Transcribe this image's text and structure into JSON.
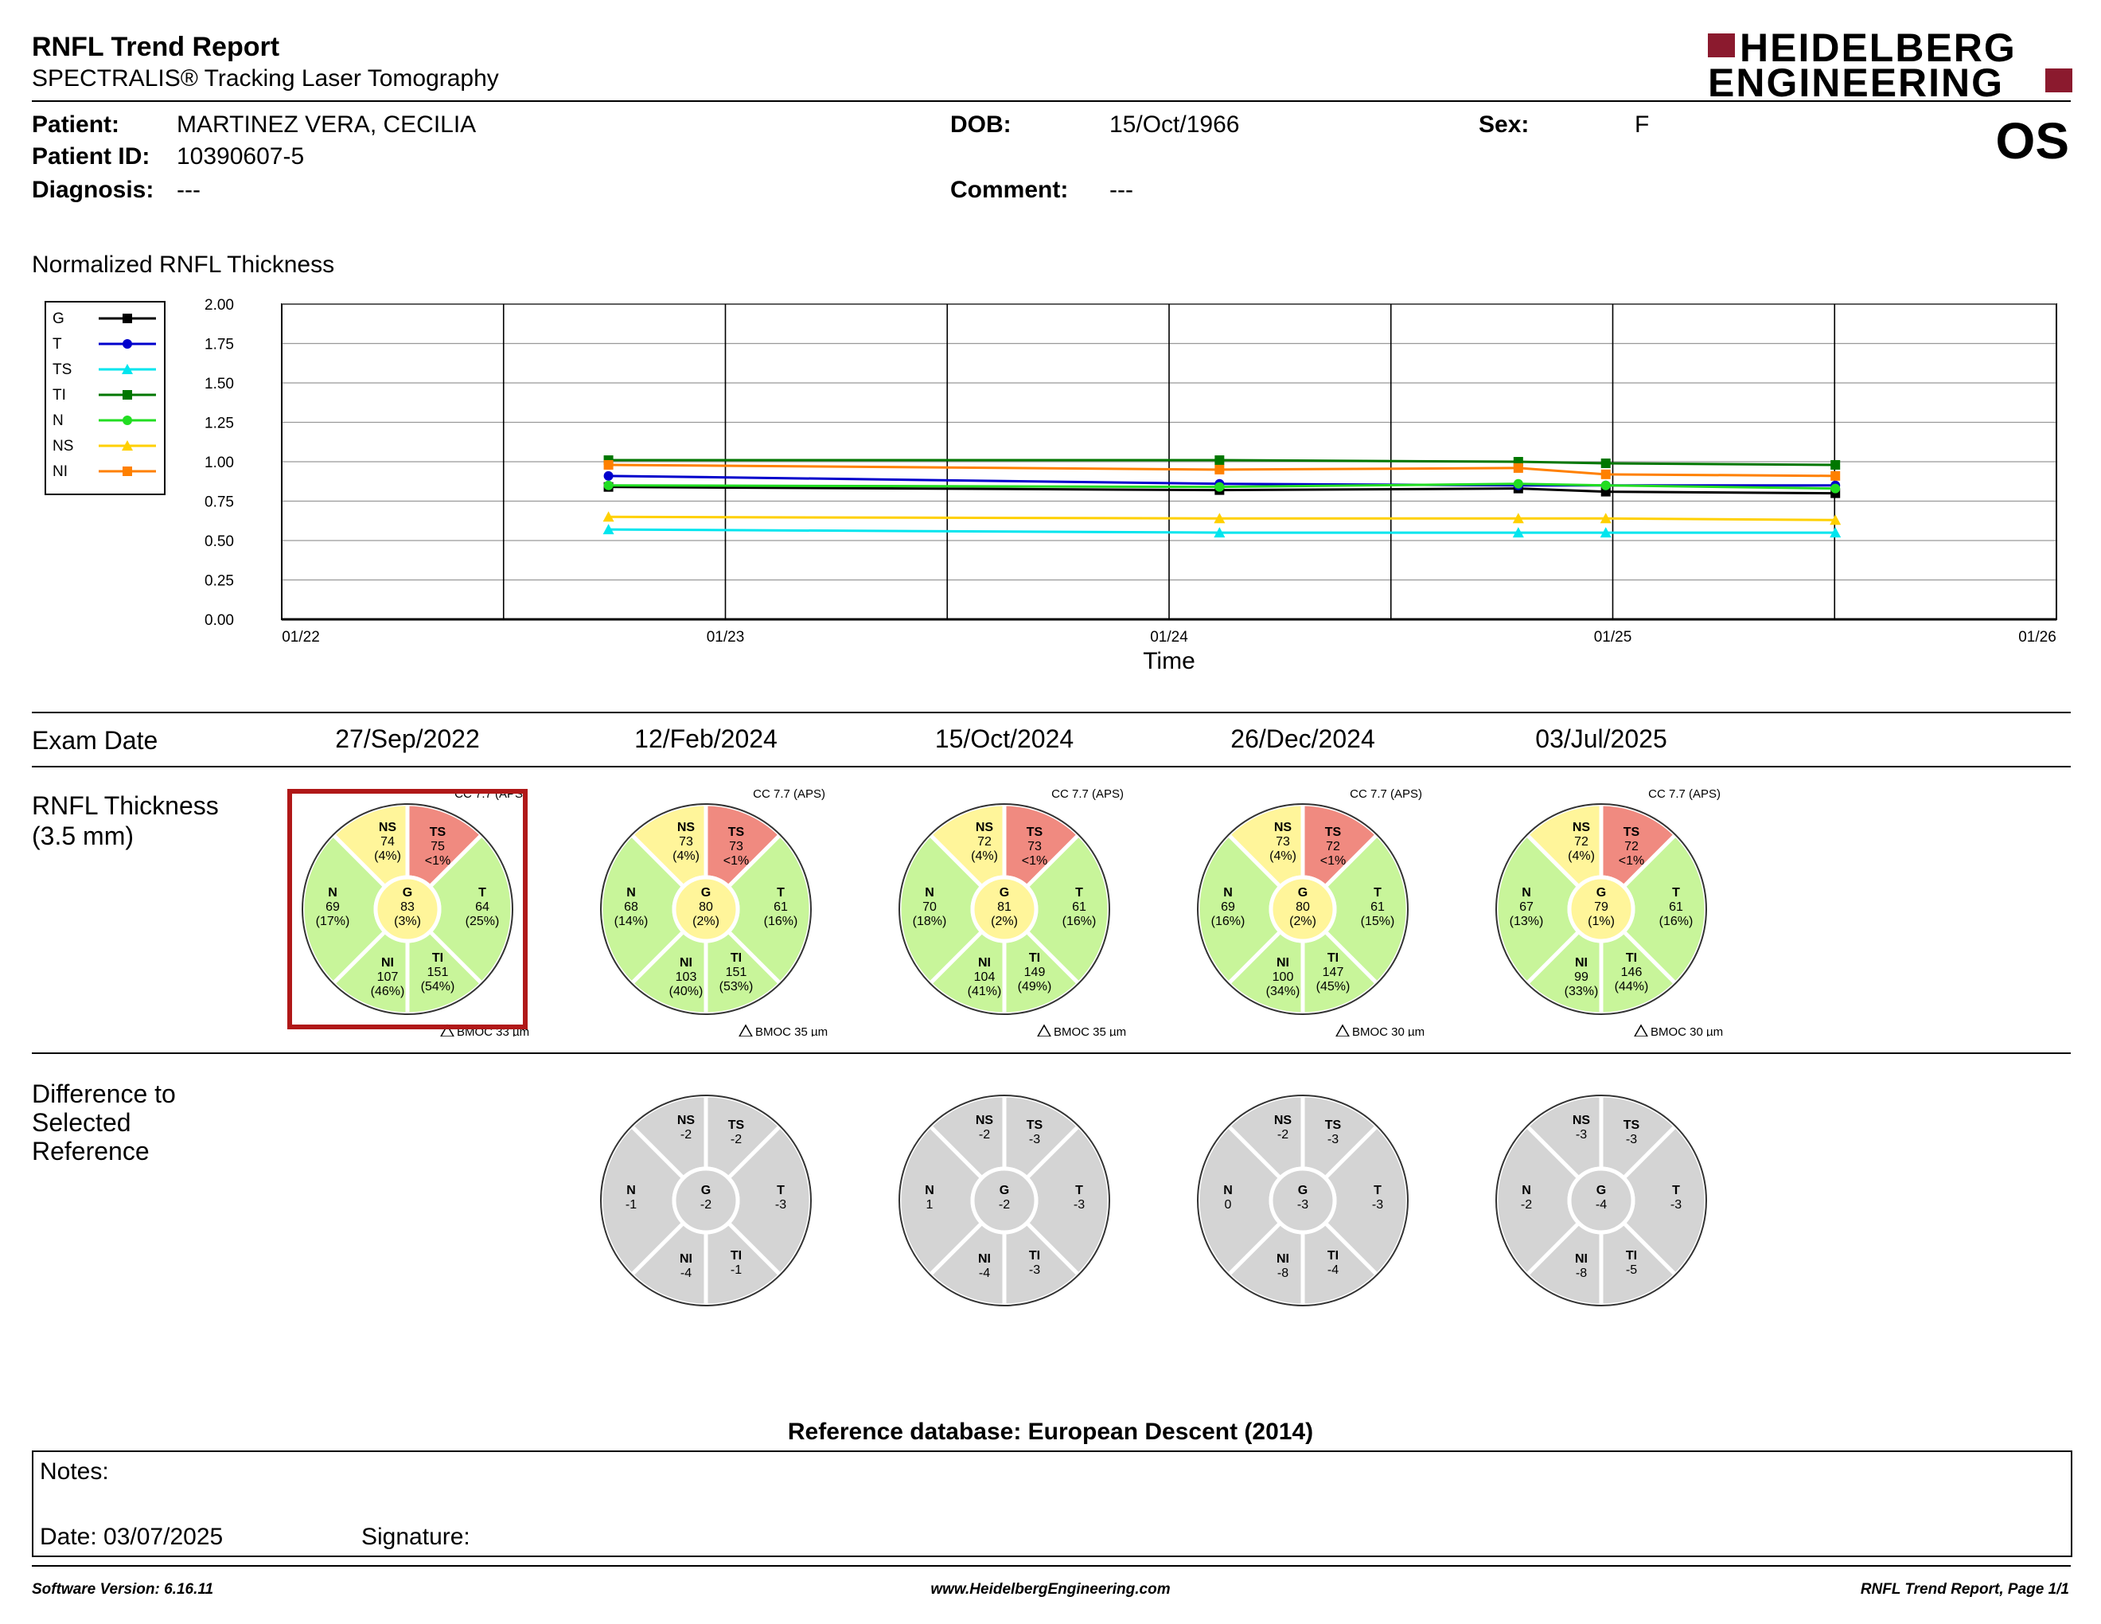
{
  "header": {
    "title": "RNFL Trend Report",
    "subtitle": "SPECTRALIS® Tracking Laser Tomography",
    "logo_line1": "HEIDELBERG",
    "logo_line2": "ENGINEERING",
    "eye": "OS"
  },
  "patient": {
    "patient_label": "Patient:",
    "patient_value": "MARTINEZ VERA, CECILIA",
    "id_label": "Patient ID:",
    "id_value": "10390607-5",
    "diagnosis_label": "Diagnosis:",
    "diagnosis_value": "---",
    "dob_label": "DOB:",
    "dob_value": "15/Oct/1966",
    "comment_label": "Comment:",
    "comment_value": "---",
    "sex_label": "Sex:",
    "sex_value": "F"
  },
  "chart_section_title": "Normalized RNFL Thickness",
  "chart_data": {
    "type": "line",
    "title": "",
    "xlabel": "Time",
    "ylabel": "",
    "ylim": [
      0,
      2.0
    ],
    "y_ticks": [
      "0.00",
      "0.25",
      "0.50",
      "0.75",
      "1.00",
      "1.25",
      "1.50",
      "1.75",
      "2.00"
    ],
    "x_ticks": [
      "01/22",
      "01/23",
      "01/24",
      "01/25",
      "01/26"
    ],
    "x_range": [
      "2022-01",
      "2026-01"
    ],
    "grid": true,
    "legend_position": "left",
    "x": [
      "2022-09-27",
      "2024-02-12",
      "2024-10-15",
      "2024-12-26",
      "2025-07-03"
    ],
    "series": [
      {
        "name": "G",
        "color": "#000000",
        "marker": "square",
        "values": [
          0.84,
          0.82,
          0.83,
          0.81,
          0.8
        ]
      },
      {
        "name": "T",
        "color": "#0000cc",
        "marker": "circle",
        "values": [
          0.91,
          0.86,
          0.85,
          0.85,
          0.85
        ]
      },
      {
        "name": "TS",
        "color": "#00e5ee",
        "marker": "triangle",
        "values": [
          0.57,
          0.55,
          0.55,
          0.55,
          0.55
        ]
      },
      {
        "name": "TI",
        "color": "#007700",
        "marker": "square",
        "values": [
          1.01,
          1.01,
          1.0,
          0.99,
          0.98
        ]
      },
      {
        "name": "N",
        "color": "#22dd22",
        "marker": "circle",
        "values": [
          0.85,
          0.84,
          0.86,
          0.85,
          0.83
        ]
      },
      {
        "name": "NS",
        "color": "#ffd000",
        "marker": "triangle",
        "values": [
          0.65,
          0.64,
          0.64,
          0.64,
          0.63
        ]
      },
      {
        "name": "NI",
        "color": "#ff8000",
        "marker": "square",
        "values": [
          0.98,
          0.95,
          0.96,
          0.92,
          0.91
        ]
      }
    ]
  },
  "exam_date_label": "Exam Date",
  "exam_dates": [
    "27/Sep/2022",
    "12/Feb/2024",
    "15/Oct/2024",
    "26/Dec/2024",
    "03/Jul/2025"
  ],
  "rnfl_label_line1": "RNFL Thickness",
  "rnfl_label_line2": "(3.5 mm)",
  "diff_label_line1": "Difference to",
  "diff_label_line2": "Selected",
  "diff_label_line3": "Reference",
  "colors": {
    "normal": "#c8f59a",
    "borderline": "#fff59a",
    "outside": "#f08a80",
    "difference": "#d4d4d4",
    "selected_border": "#b01818",
    "logo": "#8b1a2e"
  },
  "thickness": [
    {
      "cc": "CC 7.7 (APS)",
      "bmo": "BMOC 33 µm",
      "G": {
        "v": "83",
        "p": "(3%)"
      },
      "NS": {
        "v": "74",
        "p": "(4%)"
      },
      "TS": {
        "v": "75",
        "p": "<1%"
      },
      "T": {
        "v": "64",
        "p": "(25%)"
      },
      "TI": {
        "v": "151",
        "p": "(54%)"
      },
      "NI": {
        "v": "107",
        "p": "(46%)"
      },
      "N": {
        "v": "69",
        "p": "(17%)"
      }
    },
    {
      "cc": "CC 7.7 (APS)",
      "bmo": "BMOC 35 µm",
      "G": {
        "v": "80",
        "p": "(2%)"
      },
      "NS": {
        "v": "73",
        "p": "(4%)"
      },
      "TS": {
        "v": "73",
        "p": "<1%"
      },
      "T": {
        "v": "61",
        "p": "(16%)"
      },
      "TI": {
        "v": "151",
        "p": "(53%)"
      },
      "NI": {
        "v": "103",
        "p": "(40%)"
      },
      "N": {
        "v": "68",
        "p": "(14%)"
      }
    },
    {
      "cc": "CC 7.7 (APS)",
      "bmo": "BMOC 35 µm",
      "G": {
        "v": "81",
        "p": "(2%)"
      },
      "NS": {
        "v": "72",
        "p": "(4%)"
      },
      "TS": {
        "v": "73",
        "p": "<1%"
      },
      "T": {
        "v": "61",
        "p": "(16%)"
      },
      "TI": {
        "v": "149",
        "p": "(49%)"
      },
      "NI": {
        "v": "104",
        "p": "(41%)"
      },
      "N": {
        "v": "70",
        "p": "(18%)"
      }
    },
    {
      "cc": "CC 7.7 (APS)",
      "bmo": "BMOC 30 µm",
      "G": {
        "v": "80",
        "p": "(2%)"
      },
      "NS": {
        "v": "73",
        "p": "(4%)"
      },
      "TS": {
        "v": "72",
        "p": "<1%"
      },
      "T": {
        "v": "61",
        "p": "(15%)"
      },
      "TI": {
        "v": "147",
        "p": "(45%)"
      },
      "NI": {
        "v": "100",
        "p": "(34%)"
      },
      "N": {
        "v": "69",
        "p": "(16%)"
      }
    },
    {
      "cc": "CC 7.7 (APS)",
      "bmo": "BMOC 30 µm",
      "G": {
        "v": "79",
        "p": "(1%)"
      },
      "NS": {
        "v": "72",
        "p": "(4%)"
      },
      "TS": {
        "v": "72",
        "p": "<1%"
      },
      "T": {
        "v": "61",
        "p": "(16%)"
      },
      "TI": {
        "v": "146",
        "p": "(44%)"
      },
      "NI": {
        "v": "99",
        "p": "(33%)"
      },
      "N": {
        "v": "67",
        "p": "(13%)"
      }
    }
  ],
  "differences": [
    null,
    {
      "G": "-2",
      "NS": "-2",
      "TS": "-2",
      "T": "-3",
      "TI": "-1",
      "NI": "-4",
      "N": "-1"
    },
    {
      "G": "-2",
      "NS": "-2",
      "TS": "-3",
      "T": "-3",
      "TI": "-3",
      "NI": "-4",
      "N": "1"
    },
    {
      "G": "-3",
      "NS": "-2",
      "TS": "-3",
      "T": "-3",
      "TI": "-4",
      "NI": "-8",
      "N": "0"
    },
    {
      "G": "-4",
      "NS": "-3",
      "TS": "-3",
      "T": "-3",
      "TI": "-5",
      "NI": "-8",
      "N": "-2"
    }
  ],
  "reference_db": "Reference database: European Descent (2014)",
  "notes_label": "Notes:",
  "date_label": "Date: 03/07/2025",
  "signature_label": "Signature:",
  "footer": {
    "software": "Software Version: 6.16.11",
    "website": "www.HeidelbergEngineering.com",
    "page": "RNFL Trend Report, Page 1/1"
  }
}
